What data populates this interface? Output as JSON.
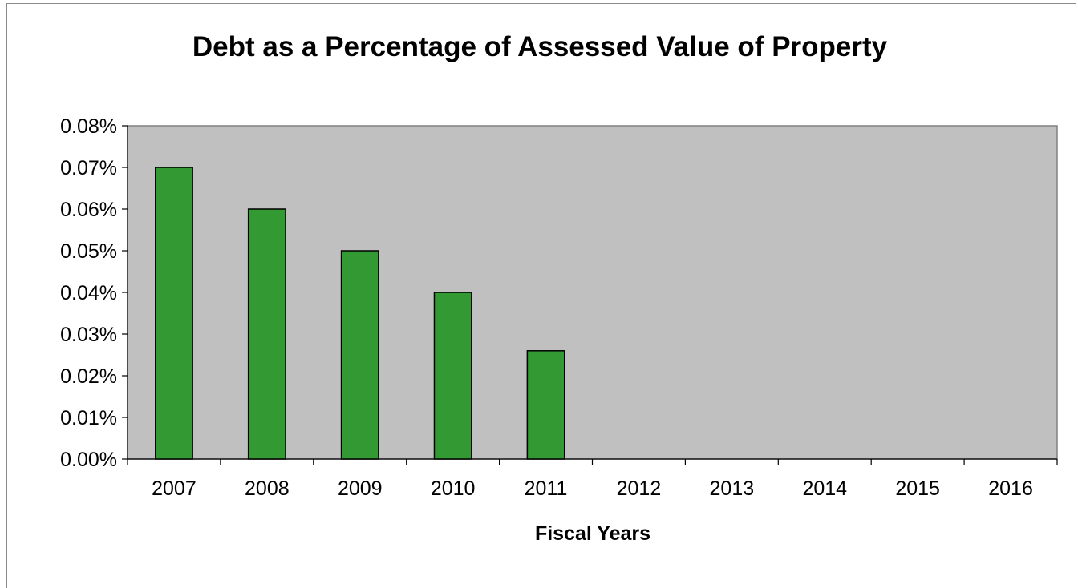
{
  "chart_data": {
    "type": "bar",
    "title": "Debt as a Percentage of Assessed Value of Property",
    "xlabel": "Fiscal Years",
    "ylabel": "",
    "categories": [
      "2007",
      "2008",
      "2009",
      "2010",
      "2011",
      "2012",
      "2013",
      "2014",
      "2015",
      "2016"
    ],
    "values": [
      0.07,
      0.06,
      0.05,
      0.04,
      0.026,
      null,
      null,
      null,
      null,
      null
    ],
    "ylim": [
      0,
      0.08
    ],
    "yticks": [
      "0.00%",
      "0.01%",
      "0.02%",
      "0.03%",
      "0.04%",
      "0.05%",
      "0.06%",
      "0.07%",
      "0.08%"
    ],
    "grid": false,
    "legend": "none",
    "colors": {
      "bar": "#339933",
      "bar_outline": "#000000",
      "plot_background": "#c0c0c0",
      "plot_border": "#808080"
    }
  }
}
